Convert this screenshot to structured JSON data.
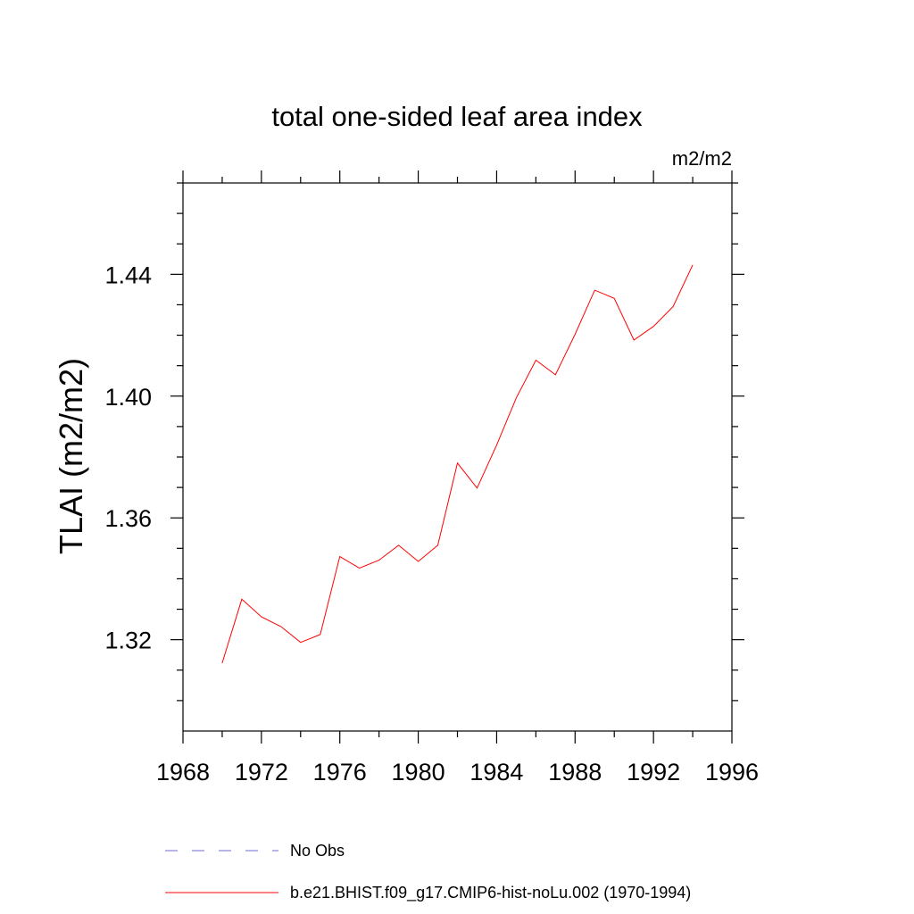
{
  "chart_data": {
    "type": "line",
    "title": "total one-sided leaf area index",
    "units": "m2/m2",
    "ylabel": "TLAI  (m2/m2)",
    "xlabel": "",
    "xlim": [
      1968,
      1996
    ],
    "ylim": [
      1.29,
      1.47
    ],
    "xticks": [
      "1968",
      "1972",
      "1976",
      "1980",
      "1984",
      "1988",
      "1992",
      "1996"
    ],
    "yticks": [
      "1.32",
      "1.36",
      "1.40",
      "1.44"
    ],
    "grid": false,
    "legend_position": "bottom",
    "x": [
      1970,
      1971,
      1972,
      1973,
      1974,
      1975,
      1976,
      1977,
      1978,
      1979,
      1980,
      1981,
      1982,
      1983,
      1984,
      1985,
      1986,
      1987,
      1988,
      1989,
      1990,
      1991,
      1992,
      1993,
      1994
    ],
    "series": [
      {
        "name": "b.e21.BHIST.f09_g17.CMIP6-hist-noLu.002 (1970-1994)",
        "color": "#ff0000",
        "style": "solid",
        "values": [
          1.3123,
          1.3333,
          1.3275,
          1.3243,
          1.3191,
          1.3217,
          1.3473,
          1.3435,
          1.3461,
          1.351,
          1.3457,
          1.351,
          1.378,
          1.3698,
          1.3839,
          1.3994,
          1.4118,
          1.407,
          1.4203,
          1.4348,
          1.4321,
          1.4184,
          1.4229,
          1.4294,
          1.4431
        ]
      }
    ],
    "legend": [
      {
        "label": "No Obs",
        "color": "#6b6bd6",
        "style": "dashed"
      },
      {
        "label": "b.e21.BHIST.f09_g17.CMIP6-hist-noLu.002 (1970-1994)",
        "color": "#ff0000",
        "style": "solid"
      }
    ]
  }
}
